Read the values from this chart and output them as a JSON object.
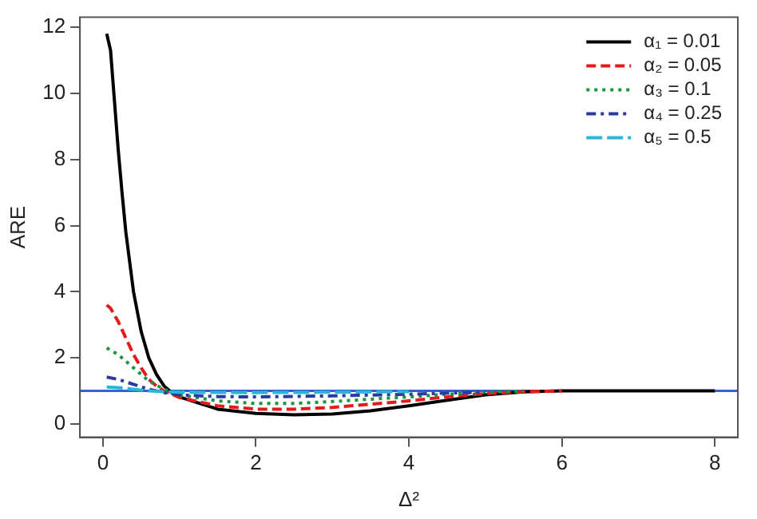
{
  "chart_data": {
    "type": "line",
    "xlabel": "Δ²",
    "ylabel": "ARE",
    "xlim": [
      -0.3,
      8.3
    ],
    "ylim": [
      -0.4,
      12.3
    ],
    "xticks": [
      0,
      2,
      4,
      6,
      8
    ],
    "yticks": [
      0,
      2,
      4,
      6,
      8,
      10,
      12
    ],
    "grid": false,
    "legend": "top right",
    "marker": "none",
    "ref_lines": [
      {
        "axis": "y",
        "value": 1,
        "color": "#3a5fcd"
      }
    ],
    "series": [
      {
        "name": "α₁ = 0.01",
        "color": "#000000",
        "line_style": "solid",
        "x": [
          0.05,
          0.1,
          0.15,
          0.2,
          0.25,
          0.3,
          0.4,
          0.5,
          0.6,
          0.7,
          0.8,
          0.9,
          1.0,
          1.5,
          2,
          2.5,
          3,
          3.5,
          4,
          4.5,
          5,
          5.5,
          6,
          7,
          8
        ],
        "values": [
          11.8,
          11.3,
          9.8,
          8.3,
          7.0,
          5.8,
          4.0,
          2.8,
          2.0,
          1.5,
          1.15,
          0.95,
          0.82,
          0.45,
          0.32,
          0.28,
          0.3,
          0.4,
          0.55,
          0.72,
          0.88,
          0.97,
          1.0,
          1.0,
          1.0
        ]
      },
      {
        "name": "α₂ = 0.05",
        "color": "#e41a1c",
        "line_style": "dashed",
        "x": [
          0.05,
          0.1,
          0.2,
          0.3,
          0.4,
          0.5,
          0.6,
          0.7,
          0.8,
          1.0,
          1.5,
          2,
          2.5,
          3,
          3.5,
          4,
          4.5,
          5,
          5.5,
          6
        ],
        "values": [
          3.6,
          3.5,
          3.1,
          2.6,
          2.1,
          1.7,
          1.35,
          1.15,
          1.0,
          0.8,
          0.55,
          0.45,
          0.45,
          0.5,
          0.6,
          0.7,
          0.82,
          0.92,
          0.98,
          1.0
        ]
      },
      {
        "name": "α₃ = 0.1",
        "color": "#1a9641",
        "line_style": "dotted",
        "x": [
          0.05,
          0.2,
          0.4,
          0.6,
          0.8,
          1.0,
          1.5,
          2,
          2.5,
          3,
          3.5,
          4,
          4.5,
          5,
          5.5
        ],
        "values": [
          2.3,
          2.1,
          1.7,
          1.3,
          1.05,
          0.88,
          0.7,
          0.62,
          0.62,
          0.68,
          0.75,
          0.82,
          0.9,
          0.96,
          1.0
        ]
      },
      {
        "name": "α₄ = 0.25",
        "color": "#2b3a9c",
        "line_style": "dashdot",
        "x": [
          0.05,
          0.2,
          0.4,
          0.6,
          0.8,
          1.0,
          1.5,
          2,
          3,
          4,
          5
        ],
        "values": [
          1.42,
          1.35,
          1.2,
          1.05,
          0.95,
          0.88,
          0.83,
          0.82,
          0.85,
          0.9,
          0.97
        ]
      },
      {
        "name": "α₅ = 0.5",
        "color": "#29b6d6",
        "line_style": "longdash",
        "x": [
          0.05,
          0.2,
          0.4,
          0.6,
          1.0,
          2,
          3,
          4
        ],
        "values": [
          1.12,
          1.1,
          1.05,
          1.0,
          0.96,
          0.95,
          0.96,
          0.98
        ]
      }
    ]
  }
}
